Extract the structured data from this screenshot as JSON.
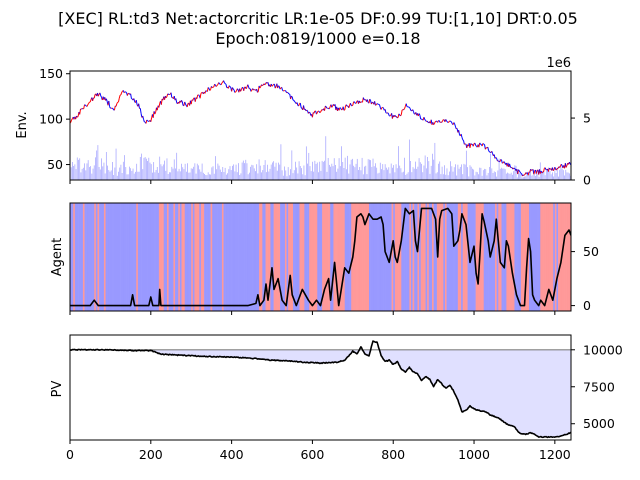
{
  "figure": {
    "title_line1": "[XEC] RL:td3 Net:actorcritic LR:1e-05 DF:0.99 TU:[1,10] DRT:0.05",
    "title_line2": "Epoch:0819/1000 e=0.18"
  },
  "colors": {
    "price_up": "#ff0000",
    "price_down": "#0000ff",
    "volume": "#aaaaff",
    "agent_long": "#9999ff",
    "agent_short": "#ff9999",
    "line": "#000000",
    "pv_fill": "#e0e0ff",
    "reference_line": "#808080"
  },
  "chart_data": [
    {
      "id": "env",
      "type": "line",
      "ylabel": "Env.",
      "y2_offset_label": "1e6",
      "xlim": [
        0,
        1240
      ],
      "ylim": [
        33,
        153
      ],
      "yticks": [
        50,
        100,
        150
      ],
      "y2lim": [
        0,
        8.8
      ],
      "y2ticks": [
        0,
        5
      ],
      "price_knots": [
        [
          0,
          97
        ],
        [
          20,
          105
        ],
        [
          45,
          118
        ],
        [
          70,
          128
        ],
        [
          90,
          120
        ],
        [
          110,
          110
        ],
        [
          130,
          130
        ],
        [
          150,
          125
        ],
        [
          170,
          115
        ],
        [
          185,
          95
        ],
        [
          200,
          100
        ],
        [
          220,
          115
        ],
        [
          245,
          130
        ],
        [
          265,
          120
        ],
        [
          290,
          115
        ],
        [
          320,
          125
        ],
        [
          350,
          135
        ],
        [
          380,
          140
        ],
        [
          410,
          130
        ],
        [
          440,
          135
        ],
        [
          460,
          130
        ],
        [
          480,
          140
        ],
        [
          500,
          138
        ],
        [
          520,
          135
        ],
        [
          545,
          125
        ],
        [
          570,
          115
        ],
        [
          600,
          105
        ],
        [
          620,
          110
        ],
        [
          650,
          115
        ],
        [
          670,
          110
        ],
        [
          700,
          118
        ],
        [
          730,
          122
        ],
        [
          755,
          118
        ],
        [
          770,
          112
        ],
        [
          790,
          105
        ],
        [
          810,
          100
        ],
        [
          830,
          115
        ],
        [
          860,
          105
        ],
        [
          880,
          100
        ],
        [
          900,
          95
        ],
        [
          930,
          100
        ],
        [
          950,
          95
        ],
        [
          965,
          85
        ],
        [
          980,
          70
        ],
        [
          1000,
          72
        ],
        [
          1020,
          72
        ],
        [
          1040,
          65
        ],
        [
          1060,
          55
        ],
        [
          1080,
          50
        ],
        [
          1100,
          45
        ],
        [
          1120,
          38
        ],
        [
          1140,
          42
        ],
        [
          1160,
          42
        ],
        [
          1180,
          45
        ],
        [
          1200,
          45
        ],
        [
          1220,
          48
        ],
        [
          1240,
          52
        ]
      ],
      "volume_knots": [
        [
          0,
          1.5
        ],
        [
          60,
          1.6
        ],
        [
          120,
          1.2
        ],
        [
          180,
          1.9
        ],
        [
          220,
          1.6
        ],
        [
          300,
          1.2
        ],
        [
          380,
          1.1
        ],
        [
          460,
          1.5
        ],
        [
          540,
          1.2
        ],
        [
          620,
          1.4
        ],
        [
          680,
          1.8
        ],
        [
          720,
          1.5
        ],
        [
          780,
          1.4
        ],
        [
          850,
          1.6
        ],
        [
          900,
          1.9
        ],
        [
          960,
          1.2
        ],
        [
          1020,
          1.0
        ],
        [
          1080,
          0.8
        ],
        [
          1140,
          0.7
        ],
        [
          1200,
          0.9
        ],
        [
          1240,
          1.0
        ]
      ]
    },
    {
      "id": "agent",
      "type": "line",
      "ylabel": "Agent",
      "xlim": [
        0,
        1240
      ],
      "ylim": [
        -5,
        95
      ],
      "yticks": [
        0,
        50
      ],
      "position_knots": [
        [
          0,
          0
        ],
        [
          50,
          0
        ],
        [
          60,
          5
        ],
        [
          70,
          0
        ],
        [
          120,
          0
        ],
        [
          150,
          0
        ],
        [
          155,
          10
        ],
        [
          160,
          0
        ],
        [
          195,
          0
        ],
        [
          200,
          8
        ],
        [
          205,
          0
        ],
        [
          220,
          0
        ],
        [
          222,
          15
        ],
        [
          225,
          0
        ],
        [
          260,
          0
        ],
        [
          300,
          0
        ],
        [
          340,
          0
        ],
        [
          400,
          0
        ],
        [
          440,
          0
        ],
        [
          460,
          2
        ],
        [
          465,
          10
        ],
        [
          470,
          0
        ],
        [
          480,
          5
        ],
        [
          485,
          20
        ],
        [
          490,
          5
        ],
        [
          500,
          35
        ],
        [
          505,
          15
        ],
        [
          515,
          25
        ],
        [
          525,
          5
        ],
        [
          535,
          0
        ],
        [
          545,
          28
        ],
        [
          550,
          10
        ],
        [
          560,
          0
        ],
        [
          575,
          15
        ],
        [
          590,
          5
        ],
        [
          600,
          0
        ],
        [
          610,
          5
        ],
        [
          620,
          0
        ],
        [
          630,
          15
        ],
        [
          640,
          25
        ],
        [
          645,
          5
        ],
        [
          655,
          40
        ],
        [
          660,
          20
        ],
        [
          665,
          0
        ],
        [
          680,
          35
        ],
        [
          690,
          30
        ],
        [
          700,
          45
        ],
        [
          705,
          60
        ],
        [
          710,
          82
        ],
        [
          720,
          85
        ],
        [
          725,
          82
        ],
        [
          730,
          75
        ],
        [
          740,
          85
        ],
        [
          750,
          80
        ],
        [
          760,
          80
        ],
        [
          770,
          82
        ],
        [
          775,
          75
        ],
        [
          780,
          50
        ],
        [
          790,
          40
        ],
        [
          800,
          60
        ],
        [
          805,
          45
        ],
        [
          810,
          40
        ],
        [
          820,
          60
        ],
        [
          830,
          90
        ],
        [
          840,
          85
        ],
        [
          850,
          88
        ],
        [
          855,
          60
        ],
        [
          860,
          50
        ],
        [
          870,
          90
        ],
        [
          880,
          90
        ],
        [
          895,
          90
        ],
        [
          905,
          80
        ],
        [
          910,
          45
        ],
        [
          915,
          80
        ],
        [
          920,
          88
        ],
        [
          935,
          90
        ],
        [
          945,
          85
        ],
        [
          950,
          55
        ],
        [
          960,
          60
        ],
        [
          965,
          70
        ],
        [
          970,
          85
        ],
        [
          980,
          75
        ],
        [
          990,
          40
        ],
        [
          1000,
          55
        ],
        [
          1005,
          30
        ],
        [
          1010,
          20
        ],
        [
          1015,
          50
        ],
        [
          1020,
          85
        ],
        [
          1025,
          78
        ],
        [
          1035,
          60
        ],
        [
          1040,
          45
        ],
        [
          1050,
          60
        ],
        [
          1055,
          80
        ],
        [
          1065,
          40
        ],
        [
          1075,
          35
        ],
        [
          1080,
          60
        ],
        [
          1085,
          55
        ],
        [
          1095,
          30
        ],
        [
          1105,
          10
        ],
        [
          1115,
          0
        ],
        [
          1125,
          0
        ],
        [
          1130,
          35
        ],
        [
          1135,
          62
        ],
        [
          1140,
          50
        ],
        [
          1145,
          10
        ],
        [
          1150,
          5
        ],
        [
          1160,
          0
        ],
        [
          1165,
          5
        ],
        [
          1175,
          0
        ],
        [
          1185,
          15
        ],
        [
          1195,
          5
        ],
        [
          1205,
          25
        ],
        [
          1215,
          40
        ],
        [
          1225,
          65
        ],
        [
          1235,
          70
        ],
        [
          1240,
          65
        ]
      ],
      "regime_knots": [
        [
          0,
          -1
        ],
        [
          220,
          -1
        ],
        [
          222,
          1
        ],
        [
          228,
          -1
        ],
        [
          460,
          -1
        ],
        [
          470,
          1
        ],
        [
          480,
          -1
        ],
        [
          490,
          1
        ],
        [
          500,
          -1
        ],
        [
          510,
          1
        ],
        [
          530,
          -1
        ],
        [
          545,
          1
        ],
        [
          555,
          -1
        ],
        [
          570,
          1
        ],
        [
          590,
          -1
        ],
        [
          605,
          1
        ],
        [
          615,
          -1
        ],
        [
          635,
          1
        ],
        [
          650,
          -1
        ],
        [
          660,
          1
        ],
        [
          690,
          -1
        ],
        [
          700,
          1
        ],
        [
          780,
          -1
        ],
        [
          800,
          1
        ],
        [
          840,
          -1
        ],
        [
          860,
          1
        ],
        [
          900,
          -1
        ],
        [
          915,
          1
        ],
        [
          950,
          -1
        ],
        [
          975,
          1
        ],
        [
          1000,
          -1
        ],
        [
          1010,
          1
        ],
        [
          1040,
          -1
        ],
        [
          1055,
          1
        ],
        [
          1080,
          -1
        ],
        [
          1090,
          1
        ],
        [
          1105,
          -1
        ],
        [
          1125,
          1
        ],
        [
          1145,
          -1
        ],
        [
          1180,
          1
        ],
        [
          1200,
          -1
        ],
        [
          1215,
          1
        ],
        [
          1240,
          1
        ]
      ]
    },
    {
      "id": "pv",
      "type": "area",
      "ylabel": "PV",
      "xlim": [
        0,
        1240
      ],
      "xticks": [
        0,
        200,
        400,
        600,
        800,
        1000,
        1200
      ],
      "ylim": [
        3900,
        11000
      ],
      "yticks": [
        5000,
        7500,
        10000
      ],
      "reference": 10000,
      "pv_knots": [
        [
          0,
          10000
        ],
        [
          100,
          10000
        ],
        [
          150,
          9950
        ],
        [
          160,
          9950
        ],
        [
          200,
          9950
        ],
        [
          225,
          9700
        ],
        [
          260,
          9650
        ],
        [
          300,
          9600
        ],
        [
          340,
          9550
        ],
        [
          400,
          9500
        ],
        [
          440,
          9450
        ],
        [
          460,
          9400
        ],
        [
          480,
          9350
        ],
        [
          500,
          9300
        ],
        [
          540,
          9250
        ],
        [
          580,
          9150
        ],
        [
          620,
          9100
        ],
        [
          660,
          9150
        ],
        [
          680,
          9300
        ],
        [
          700,
          9900
        ],
        [
          710,
          9700
        ],
        [
          720,
          10200
        ],
        [
          730,
          9700
        ],
        [
          740,
          9600
        ],
        [
          750,
          10600
        ],
        [
          760,
          10500
        ],
        [
          770,
          9600
        ],
        [
          780,
          9200
        ],
        [
          790,
          9300
        ],
        [
          800,
          9000
        ],
        [
          810,
          9200
        ],
        [
          820,
          8700
        ],
        [
          830,
          8500
        ],
        [
          840,
          8800
        ],
        [
          850,
          8500
        ],
        [
          860,
          8400
        ],
        [
          870,
          7900
        ],
        [
          880,
          8200
        ],
        [
          890,
          8000
        ],
        [
          900,
          7500
        ],
        [
          910,
          8000
        ],
        [
          920,
          7700
        ],
        [
          930,
          7400
        ],
        [
          940,
          7600
        ],
        [
          950,
          7200
        ],
        [
          960,
          6600
        ],
        [
          970,
          5800
        ],
        [
          980,
          5900
        ],
        [
          990,
          6200
        ],
        [
          1000,
          6000
        ],
        [
          1010,
          5900
        ],
        [
          1030,
          5800
        ],
        [
          1040,
          5600
        ],
        [
          1060,
          5400
        ],
        [
          1080,
          5000
        ],
        [
          1100,
          4800
        ],
        [
          1110,
          4400
        ],
        [
          1120,
          4300
        ],
        [
          1130,
          4300
        ],
        [
          1140,
          4400
        ],
        [
          1150,
          4300
        ],
        [
          1160,
          4100
        ],
        [
          1180,
          4100
        ],
        [
          1200,
          4100
        ],
        [
          1220,
          4200
        ],
        [
          1240,
          4400
        ]
      ]
    }
  ]
}
